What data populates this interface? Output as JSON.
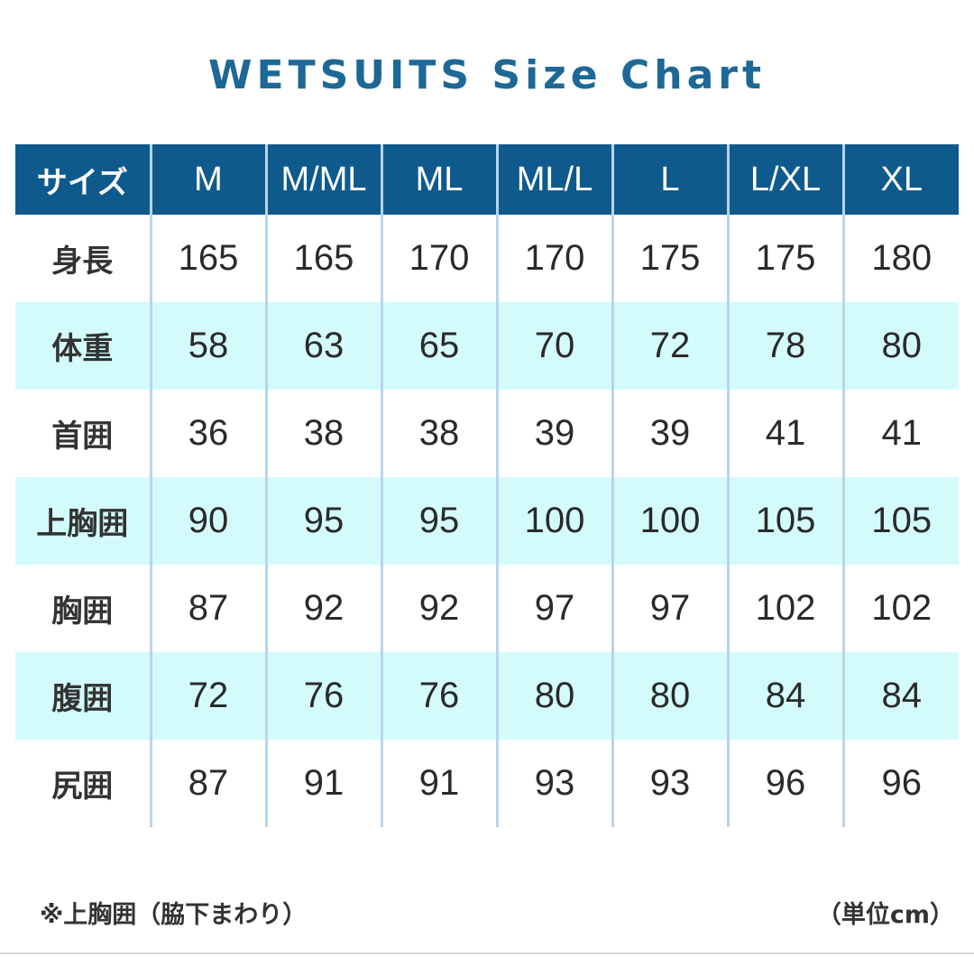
{
  "chart_data": {
    "type": "table",
    "title": "WETSUITS Size Chart",
    "header_label": "サイズ",
    "sizes": [
      "M",
      "M/ML",
      "ML",
      "ML/L",
      "L",
      "L/XL",
      "XL"
    ],
    "rows": [
      {
        "label": "身長",
        "values": [
          165,
          165,
          170,
          170,
          175,
          175,
          180
        ]
      },
      {
        "label": "体重",
        "values": [
          58,
          63,
          65,
          70,
          72,
          78,
          80
        ]
      },
      {
        "label": "首囲",
        "values": [
          36,
          38,
          38,
          39,
          39,
          41,
          41
        ]
      },
      {
        "label": "上胸囲",
        "values": [
          90,
          95,
          95,
          100,
          100,
          105,
          105
        ]
      },
      {
        "label": "胸囲",
        "values": [
          87,
          92,
          92,
          97,
          97,
          102,
          102
        ]
      },
      {
        "label": "腹囲",
        "values": [
          72,
          76,
          76,
          80,
          80,
          84,
          84
        ]
      },
      {
        "label": "尻囲",
        "values": [
          87,
          91,
          91,
          93,
          93,
          96,
          96
        ]
      }
    ]
  },
  "footnote": "※上胸囲（脇下まわり）",
  "unit": "（単位cm）",
  "colors": {
    "title": "#1d6896",
    "header_bg": "#0f5a8d",
    "row_shade": "#d4fbfc",
    "divider": "#b7d5ee"
  }
}
